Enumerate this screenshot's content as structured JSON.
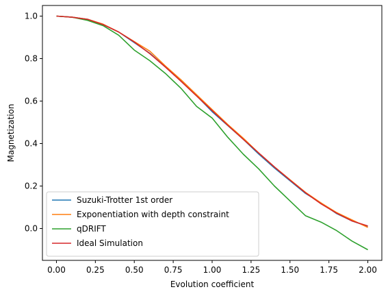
{
  "chart_data": {
    "type": "line",
    "title": "",
    "xlabel": "Evolution coefficient",
    "ylabel": "Magnetization",
    "xlim": [
      -0.09,
      2.09
    ],
    "ylim": [
      -0.15,
      1.05
    ],
    "xticks": [
      0.0,
      0.25,
      0.5,
      0.75,
      1.0,
      1.25,
      1.5,
      1.75,
      2.0
    ],
    "xtick_labels": [
      "0.00",
      "0.25",
      "0.50",
      "0.75",
      "1.00",
      "1.25",
      "1.50",
      "1.75",
      "2.00"
    ],
    "yticks": [
      0.0,
      0.2,
      0.4,
      0.6,
      0.8,
      1.0
    ],
    "ytick_labels": [
      "0.0",
      "0.2",
      "0.4",
      "0.6",
      "0.8",
      "1.0"
    ],
    "grid": false,
    "legend_position": "lower-left",
    "x": [
      0.0,
      0.1,
      0.2,
      0.3,
      0.4,
      0.5,
      0.6,
      0.7,
      0.8,
      0.9,
      1.0,
      1.1,
      1.2,
      1.3,
      1.4,
      1.5,
      1.6,
      1.7,
      1.8,
      1.9,
      2.0
    ],
    "series": [
      {
        "name": "Suzuki-Trotter 1st order",
        "color": "#1f77b4",
        "values": [
          1.0,
          0.995,
          0.985,
          0.96,
          0.925,
          0.875,
          0.825,
          0.76,
          0.695,
          0.625,
          0.55,
          0.485,
          0.42,
          0.35,
          0.285,
          0.225,
          0.165,
          0.12,
          0.07,
          0.035,
          0.01
        ]
      },
      {
        "name": "Exponentiation with depth constraint",
        "color": "#ff7f0e",
        "values": [
          1.0,
          0.995,
          0.985,
          0.962,
          0.925,
          0.88,
          0.835,
          0.765,
          0.7,
          0.63,
          0.56,
          0.49,
          0.425,
          0.355,
          0.29,
          0.23,
          0.17,
          0.12,
          0.075,
          0.04,
          0.005
        ]
      },
      {
        "name": "qDRIFT",
        "color": "#2ca02c",
        "values": [
          1.0,
          0.995,
          0.98,
          0.955,
          0.91,
          0.84,
          0.79,
          0.73,
          0.66,
          0.575,
          0.52,
          0.43,
          0.35,
          0.28,
          0.2,
          0.13,
          0.06,
          0.03,
          -0.01,
          -0.06,
          -0.1
        ]
      },
      {
        "name": "Ideal Simulation",
        "color": "#d62728",
        "values": [
          1.0,
          0.995,
          0.985,
          0.96,
          0.925,
          0.878,
          0.823,
          0.76,
          0.693,
          0.624,
          0.555,
          0.486,
          0.42,
          0.355,
          0.29,
          0.228,
          0.168,
          0.116,
          0.072,
          0.035,
          0.012
        ]
      }
    ]
  }
}
